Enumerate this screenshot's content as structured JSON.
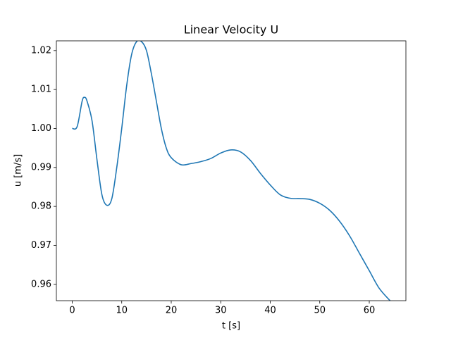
{
  "chart_data": {
    "type": "line",
    "title": "Linear Velocity U",
    "x_label": "t [s]",
    "y_label": "u [m/s]",
    "x": [
      0,
      1,
      2,
      2.5,
      3,
      4,
      5,
      6,
      7,
      8,
      9,
      10,
      11,
      12,
      13,
      14,
      15,
      16,
      17,
      18,
      19,
      20,
      22,
      24,
      26,
      28,
      30,
      32,
      34,
      36,
      38,
      40,
      42,
      44,
      46,
      48,
      50,
      52,
      54,
      56,
      58,
      60,
      62,
      64.2
    ],
    "series": [
      {
        "name": "u",
        "color": "#1f77b4",
        "values": [
          1.0,
          1.0005,
          1.007,
          1.008,
          1.007,
          1.002,
          0.992,
          0.983,
          0.9803,
          0.982,
          0.99,
          1.0,
          1.011,
          1.019,
          1.0223,
          1.0223,
          1.02,
          1.014,
          1.007,
          1.0,
          0.995,
          0.9925,
          0.9907,
          0.991,
          0.9915,
          0.9923,
          0.9937,
          0.9945,
          0.994,
          0.9918,
          0.9885,
          0.9855,
          0.983,
          0.9821,
          0.982,
          0.9818,
          0.9808,
          0.979,
          0.9762,
          0.9725,
          0.968,
          0.9635,
          0.959,
          0.9558
        ]
      }
    ],
    "xlim": [
      -3.2,
      67.4
    ],
    "ylim": [
      0.9558,
      1.0225
    ],
    "xticks": [
      0,
      10,
      20,
      30,
      40,
      50,
      60
    ],
    "yticks": [
      0.96,
      0.97,
      0.98,
      0.99,
      {
        "value": 1,
        "label": "1.00"
      },
      1.01,
      1.02
    ]
  }
}
